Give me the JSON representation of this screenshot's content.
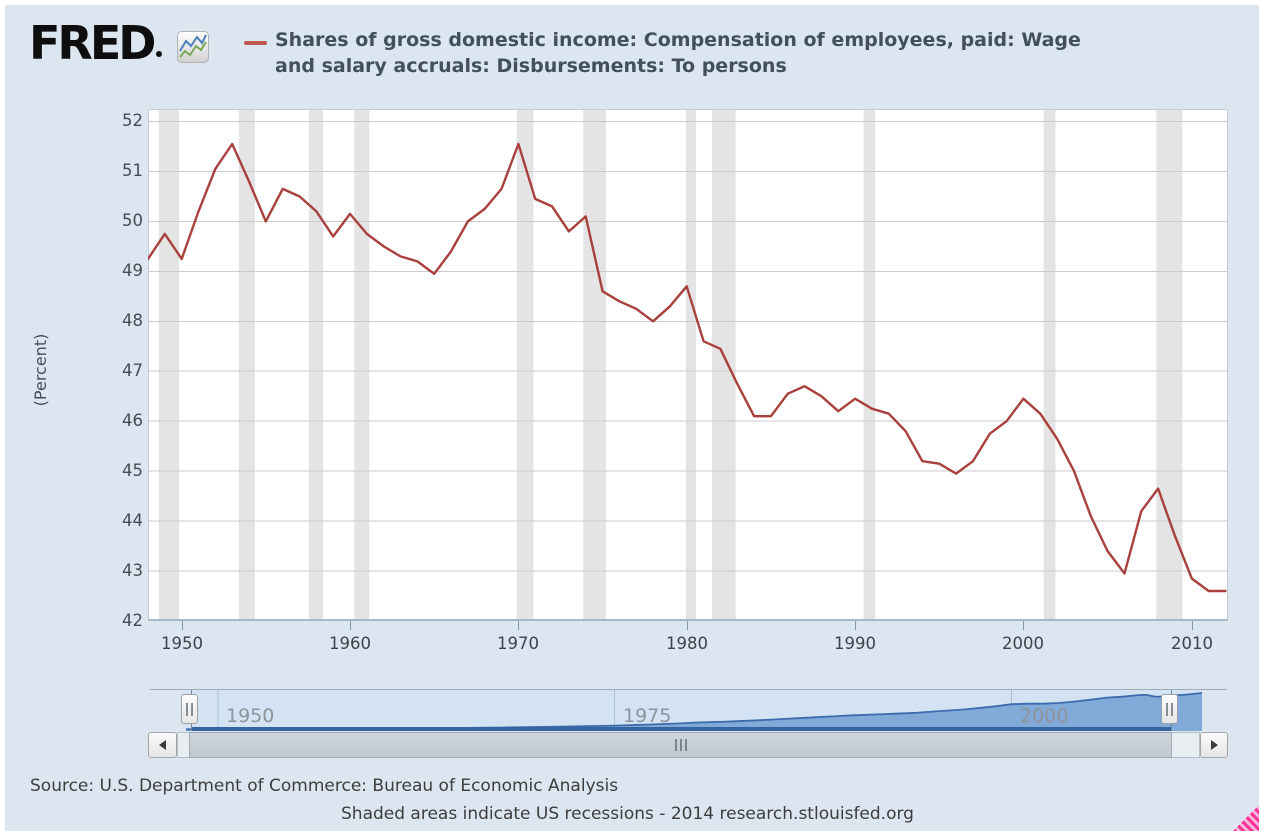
{
  "header": {
    "logo_text": "FRED",
    "title_line1": "Shares of gross domestic income: Compensation of employees, paid: Wage",
    "title_line2": "and salary accruals: Disbursements: To persons"
  },
  "footer": {
    "source_line": "Source: U.S. Department of Commerce: Bureau of Economic Analysis",
    "note_line": "Shaded areas indicate US recessions - 2014 research.stlouisfed.org"
  },
  "colors": {
    "page_background": "#dce6f0",
    "plot_background": "#ffffff",
    "series_line": "#a8403d",
    "legend_dash": "#bf5753",
    "recession_band": "#e4e4e4",
    "gridline": "#cbcbcb",
    "mini_area_fill": "#82aad8",
    "mini_area_line": "#3c6cab",
    "mini_background": "#d3e3f4",
    "resize_grip_pink": "#ff3598"
  },
  "slider": {
    "labels": [
      "1950",
      "1975",
      "2000"
    ],
    "label_years": [
      1950,
      1975,
      2000
    ]
  },
  "chart_data": {
    "type": "line",
    "title": "Shares of gross domestic income: Compensation of employees, paid: Wage and salary accruals: Disbursements: To persons",
    "ylabel": "(Percent)",
    "x_range": [
      1948,
      2012.15
    ],
    "y_range": [
      42,
      52.25
    ],
    "x_ticks": [
      1950,
      1960,
      1970,
      1980,
      1990,
      2000,
      2010
    ],
    "y_ticks": [
      42,
      43,
      44,
      45,
      46,
      47,
      48,
      49,
      50,
      51,
      52
    ],
    "grid": true,
    "legend_position": "top",
    "series": [
      {
        "name": "Shares of gross domestic income: Compensation of employees, paid: Wage and salary accruals: Disbursements: To persons",
        "color": "#a8403d",
        "x_start": 1948,
        "values": [
          49.25,
          49.75,
          49.25,
          50.2,
          51.05,
          51.55,
          50.8,
          50.0,
          50.65,
          50.5,
          50.2,
          49.7,
          50.15,
          49.75,
          49.5,
          49.3,
          49.2,
          48.95,
          49.4,
          50.0,
          50.25,
          50.65,
          51.55,
          50.45,
          50.3,
          49.8,
          50.1,
          48.6,
          48.4,
          48.25,
          48.0,
          48.3,
          48.7,
          47.6,
          47.45,
          46.75,
          46.1,
          46.1,
          46.55,
          46.7,
          46.5,
          46.2,
          46.45,
          46.25,
          46.15,
          45.8,
          45.2,
          45.15,
          44.95,
          45.2,
          45.75,
          46.0,
          46.45,
          46.15,
          45.65,
          45.0,
          44.1,
          43.4,
          42.95,
          44.2,
          44.65,
          43.7,
          42.85,
          42.6,
          42.6
        ]
      }
    ],
    "recessions": [
      [
        1948.65,
        1949.85
      ],
      [
        1953.4,
        1954.35
      ],
      [
        1957.55,
        1958.4
      ],
      [
        1960.25,
        1961.15
      ],
      [
        1969.9,
        1970.9
      ],
      [
        1973.85,
        1975.2
      ],
      [
        1979.95,
        1980.55
      ],
      [
        1981.5,
        1982.9
      ],
      [
        1990.5,
        1991.2
      ],
      [
        2001.2,
        2001.9
      ],
      [
        2007.9,
        2009.45
      ]
    ],
    "mini_area": {
      "points": [
        [
          1948,
          0.019
        ],
        [
          1950,
          0.021
        ],
        [
          1952,
          0.025
        ],
        [
          1955,
          0.031
        ],
        [
          1958,
          0.036
        ],
        [
          1960,
          0.04
        ],
        [
          1962,
          0.045
        ],
        [
          1965,
          0.053
        ],
        [
          1968,
          0.067
        ],
        [
          1970,
          0.08
        ],
        [
          1972,
          0.094
        ],
        [
          1974,
          0.11
        ],
        [
          1975,
          0.118
        ],
        [
          1977,
          0.145
        ],
        [
          1979,
          0.175
        ],
        [
          1980,
          0.199
        ],
        [
          1982,
          0.225
        ],
        [
          1984,
          0.262
        ],
        [
          1985,
          0.285
        ],
        [
          1987,
          0.33
        ],
        [
          1989,
          0.375
        ],
        [
          1990,
          0.397
        ],
        [
          1992,
          0.43
        ],
        [
          1994,
          0.465
        ],
        [
          1995,
          0.497
        ],
        [
          1997,
          0.555
        ],
        [
          1999,
          0.64
        ],
        [
          2000,
          0.697
        ],
        [
          2001,
          0.71
        ],
        [
          2002,
          0.71
        ],
        [
          2003,
          0.73
        ],
        [
          2004,
          0.77
        ],
        [
          2005,
          0.82
        ],
        [
          2006,
          0.875
        ],
        [
          2007,
          0.9
        ],
        [
          2008,
          0.944
        ],
        [
          2008.5,
          0.95
        ],
        [
          2009,
          0.905
        ],
        [
          2009.5,
          0.9
        ],
        [
          2010,
          0.925
        ],
        [
          2011,
          0.957
        ],
        [
          2012,
          1.0
        ]
      ]
    }
  }
}
